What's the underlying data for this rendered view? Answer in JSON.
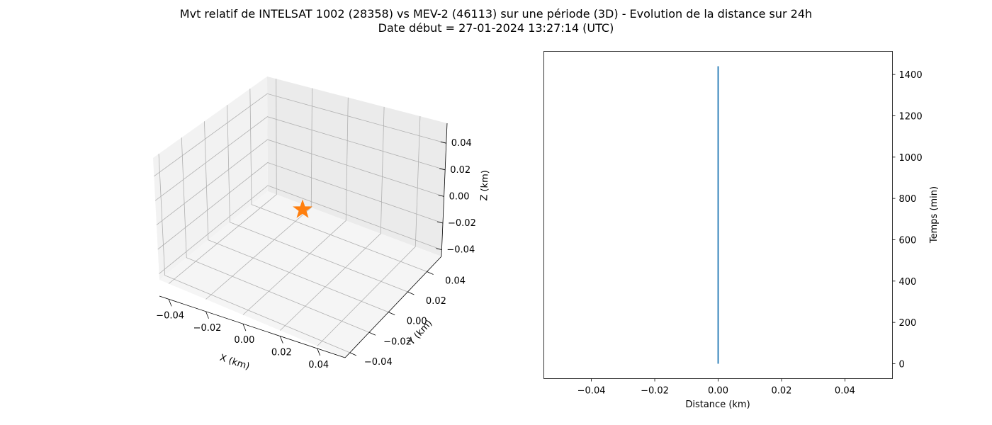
{
  "title_line1": "Mvt relatif de INTELSAT 1002 (28358) vs MEV-2 (46113) sur une période (3D) - Evolution de la distance sur 24h",
  "title_line2": "Date début = 27-01-2024 13:27:14 (UTC)",
  "chart_data": [
    {
      "type": "scatter",
      "projection": "3d",
      "xlabel": "X (km)",
      "ylabel": "Y (km)",
      "zlabel": "Z (km)",
      "xlim": [
        -0.05,
        0.05
      ],
      "ylim": [
        -0.05,
        0.05
      ],
      "zlim": [
        -0.05,
        0.05
      ],
      "x_ticks": [
        "−0.04",
        "−0.02",
        "0.00",
        "0.02",
        "0.04"
      ],
      "y_ticks": [
        "−0.04",
        "−0.02",
        "0.00",
        "0.02",
        "0.04"
      ],
      "z_ticks": [
        "−0.04",
        "−0.02",
        "0.00",
        "0.02",
        "0.04"
      ],
      "grid": true,
      "points": [
        {
          "x": 0,
          "y": 0,
          "z": 0,
          "marker": "star",
          "color": "#ff7f0e"
        }
      ]
    },
    {
      "type": "line",
      "xlabel": "Distance (km)",
      "ylabel": "Temps (min)",
      "y_axis_side": "right",
      "xlim": [
        -0.055,
        0.055
      ],
      "ylim": [
        -72,
        1512
      ],
      "x_ticks": [
        "−0.04",
        "−0.02",
        "0.00",
        "0.02",
        "0.04"
      ],
      "x_tick_values": [
        -0.04,
        -0.02,
        0.0,
        0.02,
        0.04
      ],
      "y_ticks": [
        0,
        200,
        400,
        600,
        800,
        1000,
        1200,
        1400
      ],
      "grid": false,
      "series": [
        {
          "color": "#1f77b4",
          "x": [
            0,
            0
          ],
          "y": [
            0,
            1440
          ]
        }
      ]
    }
  ]
}
